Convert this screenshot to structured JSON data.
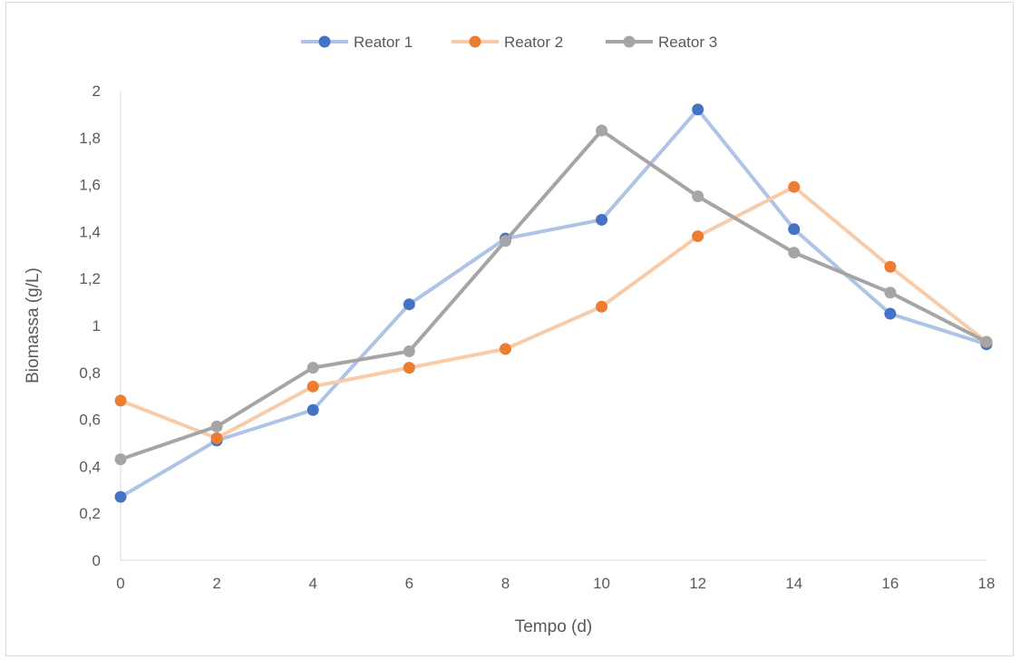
{
  "chart_data": {
    "type": "line",
    "title": "",
    "xlabel": "Tempo (d)",
    "ylabel": "Biomassa (g/L)",
    "x": [
      0,
      2,
      4,
      6,
      8,
      10,
      12,
      14,
      16,
      18
    ],
    "x_ticks": [
      "0",
      "2",
      "4",
      "6",
      "8",
      "10",
      "12",
      "14",
      "16",
      "18"
    ],
    "xlim": [
      0,
      18
    ],
    "y_ticks": [
      "0",
      "0,2",
      "0,4",
      "0,6",
      "0,8",
      "1",
      "1,2",
      "1,4",
      "1,6",
      "1,8",
      "2"
    ],
    "ylim": [
      0,
      2
    ],
    "grid": false,
    "legend_position": "top",
    "series": [
      {
        "name": "Reator 1",
        "values": [
          0.27,
          0.51,
          0.64,
          1.09,
          1.37,
          1.45,
          1.92,
          1.41,
          1.05,
          0.92
        ],
        "line_color": "#aec3e6",
        "marker_color": "#4472c4"
      },
      {
        "name": "Reator 2",
        "values": [
          0.68,
          0.52,
          0.74,
          0.82,
          0.9,
          1.08,
          1.38,
          1.59,
          1.25,
          0.93
        ],
        "line_color": "#f8cba9",
        "marker_color": "#ed7d31"
      },
      {
        "name": "Reator 3",
        "values": [
          0.43,
          0.57,
          0.82,
          0.89,
          1.36,
          1.83,
          1.55,
          1.31,
          1.14,
          0.93
        ],
        "line_color": "#a5a5a5",
        "marker_color": "#a5a5a5"
      }
    ]
  }
}
